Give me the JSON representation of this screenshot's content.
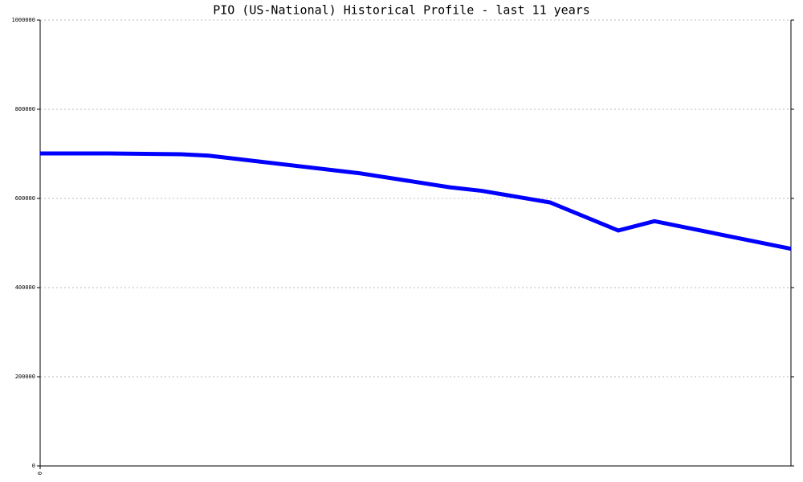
{
  "chart_data": {
    "type": "line",
    "title": "PIO (US-National) Historical Profile - last 11 years",
    "x": [
      0,
      1,
      2.06,
      2.47,
      4.7,
      6,
      6.47,
      7.47,
      8.47,
      9,
      11
    ],
    "series": [
      {
        "color": "#0000ff",
        "values": [
          701000,
          701000,
          699000,
          696000,
          656000,
          625000,
          617000,
          591000,
          528000,
          549000,
          487000
        ]
      }
    ],
    "xlim": [
      0,
      11
    ],
    "xticks": [
      0
    ],
    "ylim": [
      0,
      1000000
    ],
    "yticks": [
      0,
      200000,
      400000,
      600000,
      800000,
      1000000
    ],
    "grid": true
  }
}
